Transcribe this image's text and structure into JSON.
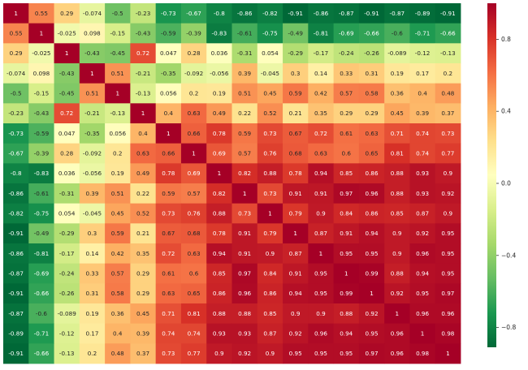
{
  "chart_data": {
    "type": "heatmap",
    "title": "",
    "xlabel": "",
    "ylabel": "",
    "colormap": "RdYlGn_r",
    "vmin": -0.91,
    "vmax": 1.0,
    "colorbar_ticks": [
      0.8,
      0.4,
      0.0,
      -0.4,
      -0.8
    ],
    "colorbar_tick_labels": [
      "0.8",
      "0.4",
      "0.0",
      "−0.4",
      "−0.8"
    ],
    "matrix": [
      [
        1,
        0.55,
        0.29,
        -0.074,
        -0.5,
        -0.23,
        -0.73,
        -0.67,
        -0.8,
        -0.86,
        -0.82,
        -0.91,
        -0.86,
        -0.87,
        -0.91,
        -0.87,
        -0.89,
        -0.91
      ],
      [
        0.55,
        1,
        -0.025,
        0.098,
        -0.15,
        -0.43,
        -0.59,
        -0.39,
        -0.83,
        -0.61,
        -0.75,
        -0.49,
        -0.81,
        -0.69,
        -0.66,
        -0.6,
        -0.71,
        -0.66
      ],
      [
        0.29,
        -0.025,
        1,
        -0.43,
        -0.45,
        0.72,
        0.047,
        0.28,
        0.036,
        -0.31,
        0.054,
        -0.29,
        -0.17,
        -0.24,
        -0.26,
        -0.089,
        -0.12,
        -0.13
      ],
      [
        -0.074,
        0.098,
        -0.43,
        1,
        0.51,
        -0.21,
        -0.35,
        -0.092,
        -0.056,
        0.39,
        -0.045,
        0.3,
        0.14,
        0.33,
        0.31,
        0.19,
        0.17,
        0.2
      ],
      [
        -0.5,
        -0.15,
        -0.45,
        0.51,
        1,
        -0.13,
        0.056,
        0.2,
        0.19,
        0.51,
        0.45,
        0.59,
        0.42,
        0.57,
        0.58,
        0.36,
        0.4,
        0.48
      ],
      [
        -0.23,
        -0.43,
        0.72,
        -0.21,
        -0.13,
        1,
        0.4,
        0.63,
        0.49,
        0.22,
        0.52,
        0.21,
        0.35,
        0.29,
        0.29,
        0.45,
        0.39,
        0.37
      ],
      [
        -0.73,
        -0.59,
        0.047,
        -0.35,
        0.056,
        0.4,
        1,
        0.66,
        0.78,
        0.59,
        0.73,
        0.67,
        0.72,
        0.61,
        0.63,
        0.71,
        0.74,
        0.73
      ],
      [
        -0.67,
        -0.39,
        0.28,
        -0.092,
        0.2,
        0.63,
        0.66,
        1,
        0.69,
        0.57,
        0.76,
        0.68,
        0.63,
        0.6,
        0.65,
        0.81,
        0.74,
        0.77
      ],
      [
        -0.8,
        -0.83,
        0.036,
        -0.056,
        0.19,
        0.49,
        0.78,
        0.69,
        1,
        0.82,
        0.88,
        0.78,
        0.94,
        0.85,
        0.86,
        0.88,
        0.93,
        0.9
      ],
      [
        -0.86,
        -0.61,
        -0.31,
        0.39,
        0.51,
        0.22,
        0.59,
        0.57,
        0.82,
        1,
        0.73,
        0.91,
        0.91,
        0.97,
        0.96,
        0.88,
        0.93,
        0.92
      ],
      [
        -0.82,
        -0.75,
        0.054,
        -0.045,
        0.45,
        0.52,
        0.73,
        0.76,
        0.88,
        0.73,
        1,
        0.79,
        0.9,
        0.84,
        0.86,
        0.85,
        0.87,
        0.9
      ],
      [
        -0.91,
        -0.49,
        -0.29,
        0.3,
        0.59,
        0.21,
        0.67,
        0.68,
        0.78,
        0.91,
        0.79,
        1,
        0.87,
        0.91,
        0.94,
        0.9,
        0.92,
        0.95
      ],
      [
        -0.86,
        -0.81,
        -0.17,
        0.14,
        0.42,
        0.35,
        0.72,
        0.63,
        0.94,
        0.91,
        0.9,
        0.87,
        1,
        0.95,
        0.95,
        0.9,
        0.96,
        0.95
      ],
      [
        -0.87,
        -0.69,
        -0.24,
        0.33,
        0.57,
        0.29,
        0.61,
        0.6,
        0.85,
        0.97,
        0.84,
        0.91,
        0.95,
        1,
        0.99,
        0.88,
        0.94,
        0.95
      ],
      [
        -0.91,
        -0.66,
        -0.26,
        0.31,
        0.58,
        0.29,
        0.63,
        0.65,
        0.86,
        0.96,
        0.86,
        0.94,
        0.95,
        0.99,
        1,
        0.92,
        0.95,
        0.97
      ],
      [
        -0.87,
        -0.6,
        -0.089,
        0.19,
        0.36,
        0.45,
        0.71,
        0.81,
        0.88,
        0.88,
        0.85,
        0.9,
        0.9,
        0.88,
        0.92,
        1,
        0.96,
        0.96
      ],
      [
        -0.89,
        -0.71,
        -0.12,
        0.17,
        0.4,
        0.39,
        0.74,
        0.74,
        0.93,
        0.93,
        0.87,
        0.92,
        0.96,
        0.94,
        0.95,
        0.96,
        1,
        0.98
      ],
      [
        -0.91,
        -0.66,
        -0.13,
        0.2,
        0.48,
        0.37,
        0.73,
        0.77,
        0.9,
        0.92,
        0.9,
        0.95,
        0.95,
        0.95,
        0.97,
        0.96,
        0.98,
        1
      ]
    ],
    "grid": false,
    "legend": "colorbar-right"
  }
}
